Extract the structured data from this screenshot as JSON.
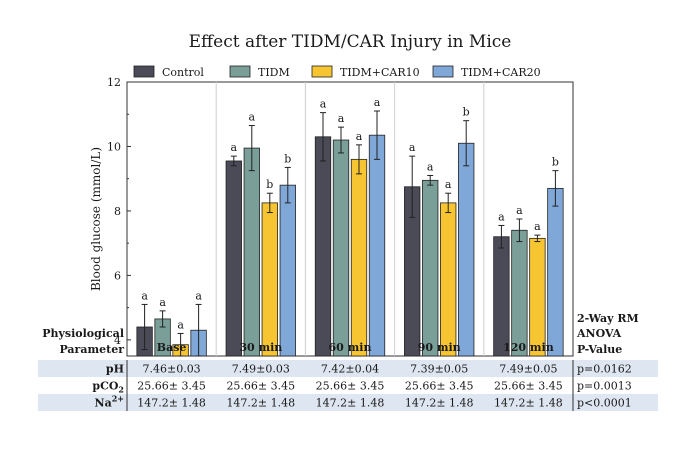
{
  "chart_data": {
    "type": "bar",
    "title": "Effect after TIDM/CAR Injury in Mice",
    "ylabel": "Blood glucose (mmol/L)",
    "ylim": [
      3.5,
      12
    ],
    "yticks": [
      4,
      6,
      8,
      10,
      12
    ],
    "categories": [
      "Base",
      "30 min",
      "60 min",
      "90 min",
      "120 min"
    ],
    "legend_position": "top",
    "series": [
      {
        "name": "Control",
        "color": "#4b4a57",
        "values": [
          4.4,
          9.55,
          10.3,
          8.75,
          7.2
        ],
        "errors": [
          0.7,
          0.15,
          0.75,
          0.95,
          0.35
        ],
        "labels": [
          "a",
          "a",
          "a",
          "a",
          "a"
        ]
      },
      {
        "name": "TIDM",
        "color": "#7a9e98",
        "values": [
          4.65,
          9.95,
          10.2,
          8.95,
          7.4
        ],
        "errors": [
          0.25,
          0.7,
          0.4,
          0.15,
          0.35
        ],
        "labels": [
          "a",
          "a",
          "a",
          "a",
          "a"
        ]
      },
      {
        "name": "TIDM+CAR10",
        "color": "#f7c531",
        "values": [
          3.85,
          8.25,
          9.6,
          8.25,
          7.15
        ],
        "errors": [
          0.35,
          0.3,
          0.45,
          0.3,
          0.1
        ],
        "labels": [
          "a",
          "b",
          "a",
          "a",
          "a"
        ]
      },
      {
        "name": "TIDM+CAR20",
        "color": "#7fa7d8",
        "values": [
          4.3,
          8.8,
          10.35,
          10.1,
          8.7
        ],
        "errors": [
          0.8,
          0.55,
          0.75,
          0.7,
          0.55
        ],
        "labels": [
          "a",
          "b",
          "a",
          "b",
          "b"
        ]
      }
    ]
  },
  "table": {
    "header_left_line1": "Physiological",
    "header_left_line2": "Parameter",
    "header_right_line1": "2-Way RM",
    "header_right_line2": "ANOVA",
    "header_right_line3": "P-Value",
    "rows": [
      {
        "label": "pH",
        "sup": "",
        "sub": "",
        "values": [
          "7.46±0.03",
          "7.49±0.03",
          "7.42±0.04",
          "7.39±0.05",
          "7.49±0.05"
        ],
        "p": "p=0.0162",
        "shaded": true
      },
      {
        "label": "pCO",
        "sub": "2",
        "sup": "",
        "values": [
          "25.66± 3.45",
          "25.66± 3.45",
          "25.66± 3.45",
          "25.66± 3.45",
          "25.66± 3.45"
        ],
        "p": "p=0.0013",
        "shaded": false
      },
      {
        "label": "Na",
        "sup": "2+",
        "sub": "",
        "values": [
          "147.2± 1.48",
          "147.2± 1.48",
          "147.2± 1.48",
          "147.2± 1.48",
          "147.2± 1.48"
        ],
        "p": "p<0.0001",
        "shaded": true
      }
    ]
  }
}
